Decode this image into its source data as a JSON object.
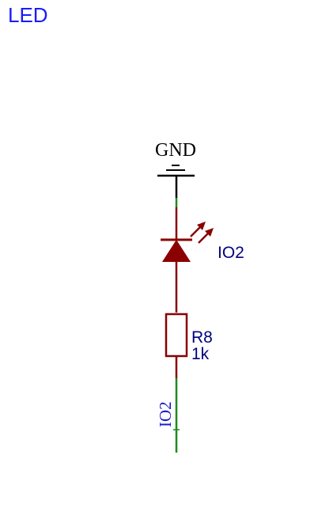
{
  "page": {
    "title": "LED"
  },
  "schematic": {
    "ground": {
      "label": "GND"
    },
    "led": {
      "designator": "IO2"
    },
    "resistor": {
      "designator": "R8",
      "value": "1k"
    },
    "net_label": {
      "text": "IO2"
    }
  },
  "colors": {
    "title": "#1a1aff",
    "wire": "#1e8a1e",
    "component": "#8b0000",
    "ground_symbol": "#000000",
    "ground_label": "#000000",
    "designator_text": "#000080",
    "net_label_text": "#1a1acc"
  }
}
